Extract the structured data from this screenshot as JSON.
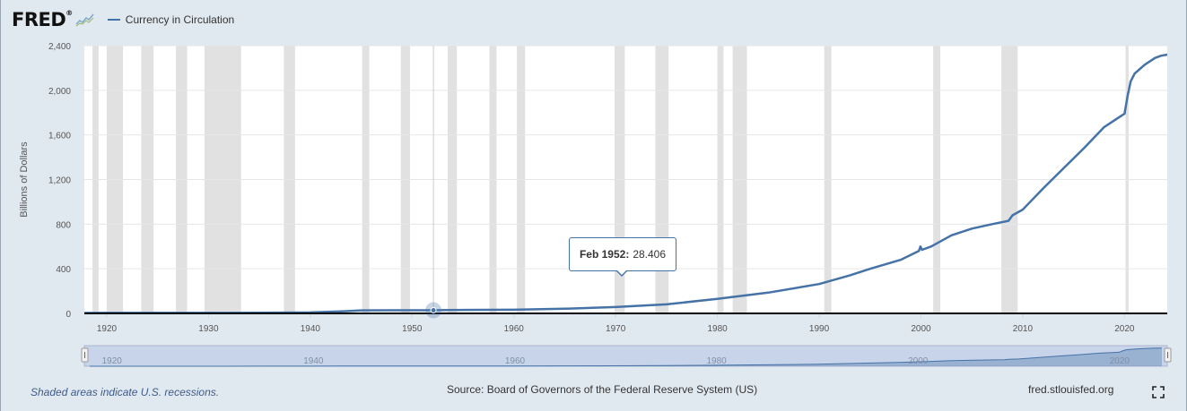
{
  "header": {
    "logo_text": "FRED",
    "logo_icon": "graph-icon",
    "legend_label": "Currency in Circulation"
  },
  "tooltip": {
    "date": "Feb 1952:",
    "value": "28.406"
  },
  "footer": {
    "recession_note": "Shaded areas indicate U.S. recessions.",
    "source": "Source: Board of Governors of the Federal Reserve System (US)",
    "site": "fred.stlouisfed.org",
    "fullscreen_icon": "fullscreen-icon"
  },
  "colors": {
    "series": "#4572a7",
    "recession": "#e1e1e1",
    "background": "#e1e9f0",
    "navigator_fill": "#b8c7e6"
  },
  "navigator": {
    "labels": [
      "1920",
      "1940",
      "1960",
      "1980",
      "2000",
      "2020"
    ]
  },
  "chart_data": {
    "type": "area",
    "title": "",
    "legend": [
      "Currency in Circulation"
    ],
    "ylabel": "Billions of Dollars",
    "xlabel": "",
    "xlim": [
      1917.8,
      2024.2
    ],
    "ylim": [
      0,
      2400
    ],
    "y_ticks": [
      "0",
      "400",
      "800",
      "1,200",
      "1,600",
      "2,000",
      "2,400"
    ],
    "y_tick_values": [
      0,
      400,
      800,
      1200,
      1600,
      2000,
      2400
    ],
    "x_ticks": [
      "1920",
      "1930",
      "1940",
      "1950",
      "1960",
      "1970",
      "1980",
      "1990",
      "2000",
      "2010",
      "2020"
    ],
    "x_tick_values": [
      1920,
      1930,
      1940,
      1950,
      1960,
      1970,
      1980,
      1990,
      2000,
      2010,
      2020
    ],
    "grid": true,
    "recessions": [
      [
        1918.6,
        1919.2
      ],
      [
        1920.0,
        1921.6
      ],
      [
        1923.4,
        1924.6
      ],
      [
        1926.8,
        1927.9
      ],
      [
        1929.6,
        1933.2
      ],
      [
        1937.4,
        1938.5
      ],
      [
        1945.1,
        1945.8
      ],
      [
        1948.9,
        1949.8
      ],
      [
        1953.5,
        1954.4
      ],
      [
        1957.6,
        1958.3
      ],
      [
        1960.3,
        1961.1
      ],
      [
        1969.9,
        1970.9
      ],
      [
        1973.9,
        1975.2
      ],
      [
        1980.0,
        1980.6
      ],
      [
        1981.5,
        1982.9
      ],
      [
        1990.5,
        1991.2
      ],
      [
        2001.2,
        2001.9
      ],
      [
        2007.9,
        2009.5
      ],
      [
        2020.1,
        2020.4
      ]
    ],
    "series": [
      {
        "name": "Currency in Circulation",
        "x": [
          1917.8,
          1920,
          1925,
          1930,
          1935,
          1940,
          1943,
          1945,
          1948,
          1952.1,
          1955,
          1960,
          1965,
          1970,
          1975,
          1980,
          1985,
          1990,
          1993,
          1995,
          1998,
          1999.8,
          1999.95,
          2000.1,
          2001,
          2003,
          2005,
          2007,
          2008.6,
          2009.0,
          2010,
          2012,
          2014,
          2016,
          2018,
          2019.5,
          2020.0,
          2020.3,
          2020.6,
          2021,
          2022,
          2023,
          2023.6,
          2024.2
        ],
        "y": [
          4,
          5,
          5,
          5,
          6,
          9,
          18,
          27,
          28,
          28.4,
          31,
          33,
          42,
          57,
          81,
          131,
          186,
          263,
          340,
          400,
          480,
          560,
          600,
          570,
          600,
          700,
          760,
          800,
          830,
          880,
          930,
          1120,
          1300,
          1480,
          1670,
          1760,
          1790,
          1950,
          2080,
          2150,
          2230,
          2290,
          2310,
          2320
        ]
      }
    ],
    "highlight": {
      "x": 1952.1,
      "y": 28.406,
      "label": "Feb 1952: 28.406"
    }
  }
}
